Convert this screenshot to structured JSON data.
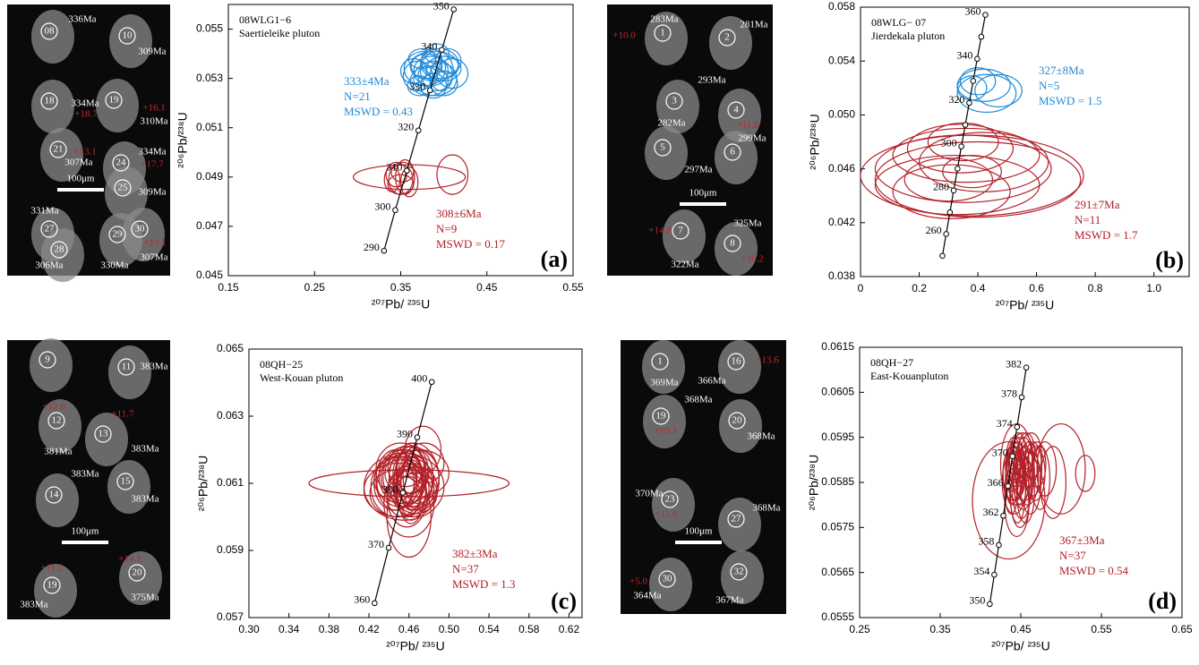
{
  "chart_data": [
    {
      "type": "concordia",
      "panel": "(a)",
      "sample": [
        "08WLG1−6",
        "Saertieleike pluton"
      ],
      "xlabel": "²⁰⁷Pb/ ²³⁵U",
      "ylabel": "²⁰⁶Pb/²³⁸U",
      "xlim": [
        0.15,
        0.55
      ],
      "xticks": [
        0.15,
        0.25,
        0.35,
        0.45,
        0.55
      ],
      "ylim": [
        0.045,
        0.056
      ],
      "yticks": [
        0.045,
        0.047,
        0.049,
        0.051,
        0.053,
        0.055
      ],
      "concordia": {
        "ages": [
          290,
          300,
          310,
          320,
          330,
          340,
          350
        ],
        "x": [
          0.3306,
          0.3437,
          0.3571,
          0.3705,
          0.384,
          0.3977,
          0.4115
        ],
        "y": [
          0.04601,
          0.04766,
          0.04926,
          0.05089,
          0.05252,
          0.05416,
          0.0558
        ]
      },
      "series": [
        {
          "color": "#1f8ad8",
          "labels": [
            "333±4Ma",
            "N=21",
            "MSWD = 0.43"
          ],
          "x": [
            0.385,
            0.39,
            0.38,
            0.395,
            0.37,
            0.4,
            0.388,
            0.375,
            0.41,
            0.365,
            0.392,
            0.383,
            0.4,
            0.378,
            0.386,
            0.397,
            0.372,
            0.389,
            0.405,
            0.381,
            0.392
          ],
          "values": [
            0.0533,
            0.053,
            0.0535,
            0.0536,
            0.0531,
            0.0534,
            0.0527,
            0.0538,
            0.0532,
            0.0533,
            0.054,
            0.0529,
            0.0528,
            0.0534,
            0.0537,
            0.0531,
            0.0527,
            0.0535,
            0.0537,
            0.0531,
            0.0533
          ],
          "xerr": [
            0.02,
            0.025,
            0.018,
            0.022,
            0.017,
            0.02,
            0.015,
            0.016,
            0.018,
            0.015,
            0.014,
            0.022,
            0.016,
            0.024,
            0.012,
            0.013,
            0.014,
            0.028,
            0.015,
            0.011,
            0.019
          ],
          "yerr": [
            0.0006,
            0.0007,
            0.0005,
            0.0006,
            0.0006,
            0.0005,
            0.0005,
            0.0004,
            0.0006,
            0.0005,
            0.0004,
            0.0006,
            0.0005,
            0.0007,
            0.0005,
            0.0006,
            0.0004,
            0.0006,
            0.0005,
            0.0004,
            0.0008
          ]
        },
        {
          "color": "#b22028",
          "labels": [
            "308±6Ma",
            "N=9",
            "MSWD = 0.17"
          ],
          "x": [
            0.36,
            0.41,
            0.35,
            0.355,
            0.345,
            0.36,
            0.35,
            0.352,
            0.34
          ],
          "values": [
            0.049,
            0.0491,
            0.0489,
            0.049,
            0.0491,
            0.0488,
            0.0487,
            0.0492,
            0.0489
          ],
          "xerr": [
            0.065,
            0.018,
            0.014,
            0.011,
            0.012,
            0.01,
            0.015,
            0.013,
            0.009
          ],
          "yerr": [
            0.0005,
            0.0008,
            0.0006,
            0.0007,
            0.0005,
            0.0006,
            0.0004,
            0.0004,
            0.0005
          ]
        }
      ]
    },
    {
      "type": "concordia",
      "panel": "(b)",
      "sample": [
        "08WLG− 07",
        "Jierdekala pluton"
      ],
      "xlabel": "²⁰⁷Pb/ ²³⁵U",
      "ylabel": "²⁰⁶Pb/²³⁸U",
      "xlim": [
        0,
        1.12
      ],
      "xticks": [
        0,
        0.2,
        0.4,
        0.6,
        0.8,
        {
          "value": 1.0,
          "label": "1.0"
        }
      ],
      "ylim": [
        0.038,
        0.058
      ],
      "yticks": [
        0.038,
        0.042,
        0.046,
        {
          "value": 0.05,
          "label": "0.050"
        },
        0.054,
        0.058
      ],
      "concordia": {
        "ages": [
          null,
          260,
          null,
          280,
          null,
          300,
          null,
          320,
          null,
          340,
          null,
          360
        ],
        "x": [
          0.2792,
          0.2919,
          0.3046,
          0.3175,
          0.3306,
          0.3437,
          0.3571,
          0.3705,
          0.384,
          0.3977,
          0.4115,
          0.4256
        ],
        "y": [
          0.03954,
          0.04116,
          0.04277,
          0.04439,
          0.04601,
          0.04766,
          0.04926,
          0.05089,
          0.05252,
          0.05416,
          0.0558,
          0.05743
        ]
      },
      "series": [
        {
          "color": "#1f8ad8",
          "labels": [
            "327±8Ma",
            "N=5",
            "MSWD = 1.5"
          ],
          "x": [
            0.42,
            0.4,
            0.47,
            0.38,
            0.43
          ],
          "values": [
            0.0522,
            0.0525,
            0.0518,
            0.052,
            0.0516
          ],
          "xerr": [
            0.09,
            0.06,
            0.08,
            0.05,
            0.1
          ],
          "yerr": [
            0.0012,
            0.001,
            0.0012,
            0.0009,
            0.0014
          ]
        },
        {
          "color": "#b22028",
          "labels": [
            "291±7Ma",
            "N=11",
            "MSWD = 1.7"
          ],
          "x": [
            0.38,
            0.35,
            0.4,
            0.36,
            0.33,
            0.34,
            0.42,
            0.31,
            0.35,
            0.3,
            0.38
          ],
          "values": [
            0.0455,
            0.046,
            0.0452,
            0.047,
            0.0448,
            0.0475,
            0.0465,
            0.0443,
            0.048,
            0.0452,
            0.0458
          ],
          "xerr": [
            0.38,
            0.3,
            0.35,
            0.25,
            0.28,
            0.18,
            0.22,
            0.2,
            0.12,
            0.15,
            0.1
          ],
          "yerr": [
            0.003,
            0.0025,
            0.0028,
            0.002,
            0.0022,
            0.0018,
            0.0022,
            0.002,
            0.0014,
            0.0016,
            0.0012
          ]
        }
      ]
    },
    {
      "type": "concordia",
      "panel": "(c)",
      "sample": [
        "08QH−25",
        "West-Kouan pluton"
      ],
      "xlabel": "²⁰⁷Pb/ ²³⁵U",
      "ylabel": "²⁰⁶Pb/²³⁸U",
      "xlim": [
        0.3,
        0.633
      ],
      "xticks": [
        {
          "value": 0.3,
          "label": "0.30"
        },
        0.34,
        0.38,
        0.42,
        0.46,
        {
          "value": 0.5,
          "label": "0.50"
        },
        0.54,
        0.58,
        0.62
      ],
      "ylim": [
        0.057,
        0.065
      ],
      "yticks": [
        0.057,
        0.059,
        0.061,
        0.063,
        0.065
      ],
      "concordia": {
        "ages": [
          360,
          370,
          380,
          390,
          400
        ],
        "x": [
          0.4256,
          0.4397,
          0.4539,
          0.4683,
          0.4828
        ],
        "y": [
          0.05743,
          0.05908,
          0.06072,
          0.06237,
          0.06402
        ]
      },
      "series": [
        {
          "color": "#b22028",
          "labels": [
            "382±3Ma",
            "N=37",
            "MSWD = 1.3"
          ],
          "x": [
            0.46,
            0.455,
            0.46,
            0.45,
            0.465,
            0.47,
            0.458,
            0.452,
            0.462,
            0.468,
            0.455,
            0.46,
            0.445,
            0.475,
            0.45,
            0.462,
            0.458,
            0.466,
            0.449,
            0.471,
            0.456,
            0.463,
            0.459,
            0.454,
            0.467,
            0.461,
            0.448,
            0.457,
            0.464,
            0.46,
            0.452,
            0.469,
            0.455,
            0.447,
            0.462,
            0.458,
            0.474
          ],
          "values": [
            0.061,
            0.0609,
            0.0612,
            0.0608,
            0.0611,
            0.0613,
            0.0606,
            0.0614,
            0.061,
            0.0609,
            0.0611,
            0.0604,
            0.061,
            0.0616,
            0.0612,
            0.0608,
            0.0613,
            0.061,
            0.0607,
            0.0611,
            0.0609,
            0.0614,
            0.061,
            0.0612,
            0.0607,
            0.0611,
            0.0609,
            0.0615,
            0.0608,
            0.06,
            0.061,
            0.0612,
            0.0606,
            0.0611,
            0.0609,
            0.0613,
            0.062
          ],
          "xerr": [
            0.1,
            0.04,
            0.03,
            0.035,
            0.025,
            0.03,
            0.02,
            0.025,
            0.015,
            0.02,
            0.03,
            0.025,
            0.02,
            0.02,
            0.018,
            0.015,
            0.022,
            0.017,
            0.028,
            0.019,
            0.012,
            0.016,
            0.014,
            0.02,
            0.021,
            0.013,
            0.026,
            0.018,
            0.016,
            0.022,
            0.024,
            0.015,
            0.017,
            0.02,
            0.011,
            0.014,
            0.018
          ],
          "yerr": [
            0.0004,
            0.001,
            0.0009,
            0.0008,
            0.0011,
            0.0007,
            0.0009,
            0.0008,
            0.0012,
            0.0006,
            0.0007,
            0.001,
            0.0008,
            0.0006,
            0.0007,
            0.0009,
            0.0006,
            0.0008,
            0.0007,
            0.0009,
            0.0006,
            0.0007,
            0.001,
            0.0008,
            0.0006,
            0.0007,
            0.0009,
            0.0006,
            0.0008,
            0.0012,
            0.0007,
            0.0008,
            0.0006,
            0.0009,
            0.0007,
            0.0006,
            0.0007
          ]
        }
      ]
    },
    {
      "type": "concordia",
      "panel": "(d)",
      "sample": [
        "08QH−27",
        "East-Kouanpluton"
      ],
      "xlabel": "²⁰⁷Pb/ ²³⁵U",
      "ylabel": "²⁰⁶Pb/²³⁸U",
      "xlim": [
        0.25,
        0.65
      ],
      "xticks": [
        0.25,
        0.35,
        0.45,
        0.55,
        0.65
      ],
      "ylim": [
        0.0555,
        0.0615
      ],
      "yticks": [
        0.0555,
        0.0565,
        0.0575,
        0.0585,
        0.0595,
        0.0605,
        0.0615
      ],
      "concordia": {
        "ages": [
          350,
          354,
          358,
          362,
          366,
          370,
          374,
          378,
          382
        ],
        "x": [
          0.4115,
          0.4171,
          0.4227,
          0.4283,
          0.434,
          0.4397,
          0.4453,
          0.4511,
          0.4568
        ],
        "y": [
          0.0558,
          0.05645,
          0.05711,
          0.05776,
          0.05842,
          0.05908,
          0.05973,
          0.06039,
          0.06105
        ]
      },
      "series": [
        {
          "color": "#b22028",
          "labels": [
            "367±3Ma",
            "N=37",
            "MSWD = 0.54"
          ],
          "x": [
            0.435,
            0.44,
            0.445,
            0.442,
            0.448,
            0.45,
            0.438,
            0.444,
            0.452,
            0.455,
            0.446,
            0.441,
            0.458,
            0.46,
            0.449,
            0.443,
            0.447,
            0.462,
            0.465,
            0.454,
            0.439,
            0.451,
            0.457,
            0.468,
            0.47,
            0.445,
            0.44,
            0.453,
            0.448,
            0.456,
            0.463,
            0.474,
            0.48,
            0.49,
            0.5,
            0.53,
            0.445
          ],
          "values": [
            0.0581,
            0.0587,
            0.0589,
            0.0585,
            0.059,
            0.0586,
            0.0583,
            0.0588,
            0.0591,
            0.0587,
            0.0584,
            0.059,
            0.0586,
            0.0589,
            0.0582,
            0.0587,
            0.0592,
            0.0585,
            0.0588,
            0.059,
            0.0586,
            0.0584,
            0.0592,
            0.0587,
            0.0589,
            0.058,
            0.0588,
            0.0585,
            0.0587,
            0.0583,
            0.0591,
            0.0586,
            0.0588,
            0.0585,
            0.0588,
            0.0587,
            0.0589
          ],
          "xerr": [
            0.045,
            0.012,
            0.01,
            0.015,
            0.012,
            0.01,
            0.008,
            0.011,
            0.013,
            0.012,
            0.01,
            0.009,
            0.014,
            0.011,
            0.012,
            0.01,
            0.009,
            0.013,
            0.011,
            0.01,
            0.008,
            0.012,
            0.01,
            0.012,
            0.011,
            0.015,
            0.009,
            0.012,
            0.008,
            0.011,
            0.013,
            0.012,
            0.014,
            0.016,
            0.03,
            0.012,
            0.02
          ],
          "yerr": [
            0.0013,
            0.0006,
            0.0005,
            0.0007,
            0.0005,
            0.0006,
            0.0005,
            0.0007,
            0.0005,
            0.0006,
            0.0008,
            0.0005,
            0.0006,
            0.0005,
            0.0007,
            0.0006,
            0.0004,
            0.0007,
            0.0006,
            0.0005,
            0.0006,
            0.0007,
            0.0004,
            0.0006,
            0.0005,
            0.0007,
            0.0005,
            0.0006,
            0.0005,
            0.0007,
            0.0005,
            0.0007,
            0.0006,
            0.0008,
            0.001,
            0.0004,
            0.0009
          ]
        }
      ]
    }
  ],
  "images": [
    {
      "labels": [
        "08",
        "336Ma",
        "10",
        "309Ma",
        "334Ma",
        "+18.7",
        "18",
        "19",
        "+16.1",
        "310Ma",
        "21",
        "+13.1",
        "307Ma",
        "24",
        "334Ma",
        "+17.7",
        "25",
        "309Ma",
        "100μm",
        "331Ma",
        "27",
        "28",
        "306Ma",
        "29",
        "30",
        "+13.1",
        "307Ma",
        "330Ma"
      ]
    },
    {
      "labels": [
        "283Ma",
        "281Ma",
        "+10.0",
        "1",
        "2",
        "3",
        "293Ma",
        "4",
        "+11.8",
        "282Ma",
        "299Ma",
        "5",
        "6",
        "297Ma",
        "100μm",
        "7",
        "8",
        "325Ma",
        "+14.8",
        "+10.2",
        "322Ma"
      ]
    },
    {
      "labels": [
        "9",
        "11",
        "383Ma",
        "12",
        "+12.6",
        "13",
        "+11.7",
        "381Ma",
        "383Ma",
        "14",
        "383Ma",
        "15",
        "383Ma",
        "100μm",
        "+11.2",
        "19",
        "+14.1",
        "20",
        "383Ma",
        "375Ma"
      ]
    },
    {
      "labels": [
        "1",
        "16",
        "+13.6",
        "369Ma",
        "366Ma",
        "368Ma",
        "19",
        "+10.3",
        "20",
        "368Ma",
        "370Ma",
        "23",
        "+11.6",
        "27",
        "368Ma",
        "100μm",
        "+5.0",
        "30",
        "364Ma",
        "32",
        "367Ma"
      ]
    }
  ]
}
